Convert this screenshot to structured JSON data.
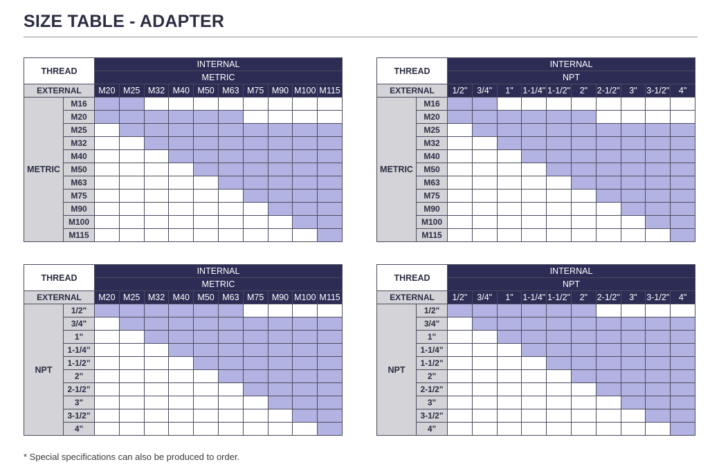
{
  "title": "SIZE TABLE - ADAPTER",
  "footnote": "* Special specifications can also be produced to order.",
  "colors": {
    "header": "#2c2c55",
    "label": "#d3d3d8",
    "fit": "#b3b3e3",
    "empty": "#ffffff"
  },
  "tables": [
    {
      "thread_label": "THREAD",
      "internal_label": "INTERNAL",
      "internal_system": "METRIC",
      "external_label": "EXTERNAL",
      "external_system": "METRIC",
      "columns": [
        "M20",
        "M25",
        "M32",
        "M40",
        "M50",
        "M63",
        "M75",
        "M90",
        "M100",
        "M115"
      ],
      "rows": [
        {
          "label": "M16",
          "fit": [
            1,
            1,
            0,
            0,
            0,
            0,
            0,
            0,
            0,
            0
          ]
        },
        {
          "label": "M20",
          "fit": [
            1,
            1,
            1,
            1,
            1,
            1,
            0,
            0,
            0,
            0
          ]
        },
        {
          "label": "M25",
          "fit": [
            0,
            1,
            1,
            1,
            1,
            1,
            1,
            1,
            1,
            1
          ]
        },
        {
          "label": "M32",
          "fit": [
            0,
            0,
            1,
            1,
            1,
            1,
            1,
            1,
            1,
            1
          ]
        },
        {
          "label": "M40",
          "fit": [
            0,
            0,
            0,
            1,
            1,
            1,
            1,
            1,
            1,
            1
          ]
        },
        {
          "label": "M50",
          "fit": [
            0,
            0,
            0,
            0,
            1,
            1,
            1,
            1,
            1,
            1
          ]
        },
        {
          "label": "M63",
          "fit": [
            0,
            0,
            0,
            0,
            0,
            1,
            1,
            1,
            1,
            1
          ]
        },
        {
          "label": "M75",
          "fit": [
            0,
            0,
            0,
            0,
            0,
            0,
            1,
            1,
            1,
            1
          ]
        },
        {
          "label": "M90",
          "fit": [
            0,
            0,
            0,
            0,
            0,
            0,
            0,
            1,
            1,
            1
          ]
        },
        {
          "label": "M100",
          "fit": [
            0,
            0,
            0,
            0,
            0,
            0,
            0,
            0,
            1,
            1
          ]
        },
        {
          "label": "M115",
          "fit": [
            0,
            0,
            0,
            0,
            0,
            0,
            0,
            0,
            0,
            1
          ]
        }
      ]
    },
    {
      "thread_label": "THREAD",
      "internal_label": "INTERNAL",
      "internal_system": "NPT",
      "external_label": "EXTERNAL",
      "external_system": "METRIC",
      "columns": [
        "1/2\"",
        "3/4\"",
        "1\"",
        "1-1/4\"",
        "1-1/2\"",
        "2\"",
        "2-1/2\"",
        "3\"",
        "3-1/2\"",
        "4\""
      ],
      "rows": [
        {
          "label": "M16",
          "fit": [
            1,
            1,
            0,
            0,
            0,
            0,
            0,
            0,
            0,
            0
          ]
        },
        {
          "label": "M20",
          "fit": [
            1,
            1,
            1,
            1,
            1,
            1,
            0,
            0,
            0,
            0
          ]
        },
        {
          "label": "M25",
          "fit": [
            0,
            1,
            1,
            1,
            1,
            1,
            1,
            1,
            1,
            1
          ]
        },
        {
          "label": "M32",
          "fit": [
            0,
            0,
            1,
            1,
            1,
            1,
            1,
            1,
            1,
            1
          ]
        },
        {
          "label": "M40",
          "fit": [
            0,
            0,
            0,
            1,
            1,
            1,
            1,
            1,
            1,
            1
          ]
        },
        {
          "label": "M50",
          "fit": [
            0,
            0,
            0,
            0,
            1,
            1,
            1,
            1,
            1,
            1
          ]
        },
        {
          "label": "M63",
          "fit": [
            0,
            0,
            0,
            0,
            0,
            1,
            1,
            1,
            1,
            1
          ]
        },
        {
          "label": "M75",
          "fit": [
            0,
            0,
            0,
            0,
            0,
            0,
            1,
            1,
            1,
            1
          ]
        },
        {
          "label": "M90",
          "fit": [
            0,
            0,
            0,
            0,
            0,
            0,
            0,
            1,
            1,
            1
          ]
        },
        {
          "label": "M100",
          "fit": [
            0,
            0,
            0,
            0,
            0,
            0,
            0,
            0,
            1,
            1
          ]
        },
        {
          "label": "M115",
          "fit": [
            0,
            0,
            0,
            0,
            0,
            0,
            0,
            0,
            0,
            1
          ]
        }
      ]
    },
    {
      "thread_label": "THREAD",
      "internal_label": "INTERNAL",
      "internal_system": "METRIC",
      "external_label": "EXTERNAL",
      "external_system": "NPT",
      "columns": [
        "M20",
        "M25",
        "M32",
        "M40",
        "M50",
        "M63",
        "M75",
        "M90",
        "M100",
        "M115"
      ],
      "rows": [
        {
          "label": "1/2\"",
          "fit": [
            1,
            1,
            1,
            1,
            1,
            1,
            0,
            0,
            0,
            0
          ]
        },
        {
          "label": "3/4\"",
          "fit": [
            0,
            1,
            1,
            1,
            1,
            1,
            1,
            1,
            1,
            1
          ]
        },
        {
          "label": "1\"",
          "fit": [
            0,
            0,
            1,
            1,
            1,
            1,
            1,
            1,
            1,
            1
          ]
        },
        {
          "label": "1-1/4\"",
          "fit": [
            0,
            0,
            0,
            1,
            1,
            1,
            1,
            1,
            1,
            1
          ]
        },
        {
          "label": "1-1/2\"",
          "fit": [
            0,
            0,
            0,
            0,
            1,
            1,
            1,
            1,
            1,
            1
          ]
        },
        {
          "label": "2\"",
          "fit": [
            0,
            0,
            0,
            0,
            0,
            1,
            1,
            1,
            1,
            1
          ]
        },
        {
          "label": "2-1/2\"",
          "fit": [
            0,
            0,
            0,
            0,
            0,
            0,
            1,
            1,
            1,
            1
          ]
        },
        {
          "label": "3\"",
          "fit": [
            0,
            0,
            0,
            0,
            0,
            0,
            0,
            1,
            1,
            1
          ]
        },
        {
          "label": "3-1/2\"",
          "fit": [
            0,
            0,
            0,
            0,
            0,
            0,
            0,
            0,
            1,
            1
          ]
        },
        {
          "label": "4\"",
          "fit": [
            0,
            0,
            0,
            0,
            0,
            0,
            0,
            0,
            0,
            1
          ]
        }
      ]
    },
    {
      "thread_label": "THREAD",
      "internal_label": "INTERNAL",
      "internal_system": "NPT",
      "external_label": "EXTERNAL",
      "external_system": "NPT",
      "columns": [
        "1/2\"",
        "3/4\"",
        "1\"",
        "1-1/4\"",
        "1-1/2\"",
        "2\"",
        "2-1/2\"",
        "3\"",
        "3-1/2\"",
        "4\""
      ],
      "rows": [
        {
          "label": "1/2\"",
          "fit": [
            1,
            1,
            1,
            1,
            1,
            1,
            0,
            0,
            0,
            0
          ]
        },
        {
          "label": "3/4\"",
          "fit": [
            0,
            1,
            1,
            1,
            1,
            1,
            1,
            1,
            1,
            1
          ]
        },
        {
          "label": "1\"",
          "fit": [
            0,
            0,
            1,
            1,
            1,
            1,
            1,
            1,
            1,
            1
          ]
        },
        {
          "label": "1-1/4\"",
          "fit": [
            0,
            0,
            0,
            1,
            1,
            1,
            1,
            1,
            1,
            1
          ]
        },
        {
          "label": "1-1/2\"",
          "fit": [
            0,
            0,
            0,
            0,
            1,
            1,
            1,
            1,
            1,
            1
          ]
        },
        {
          "label": "2\"",
          "fit": [
            0,
            0,
            0,
            0,
            0,
            1,
            1,
            1,
            1,
            1
          ]
        },
        {
          "label": "2-1/2\"",
          "fit": [
            0,
            0,
            0,
            0,
            0,
            0,
            1,
            1,
            1,
            1
          ]
        },
        {
          "label": "3\"",
          "fit": [
            0,
            0,
            0,
            0,
            0,
            0,
            0,
            1,
            1,
            1
          ]
        },
        {
          "label": "3-1/2\"",
          "fit": [
            0,
            0,
            0,
            0,
            0,
            0,
            0,
            0,
            1,
            1
          ]
        },
        {
          "label": "4\"",
          "fit": [
            0,
            0,
            0,
            0,
            0,
            0,
            0,
            0,
            0,
            1
          ]
        }
      ]
    }
  ]
}
